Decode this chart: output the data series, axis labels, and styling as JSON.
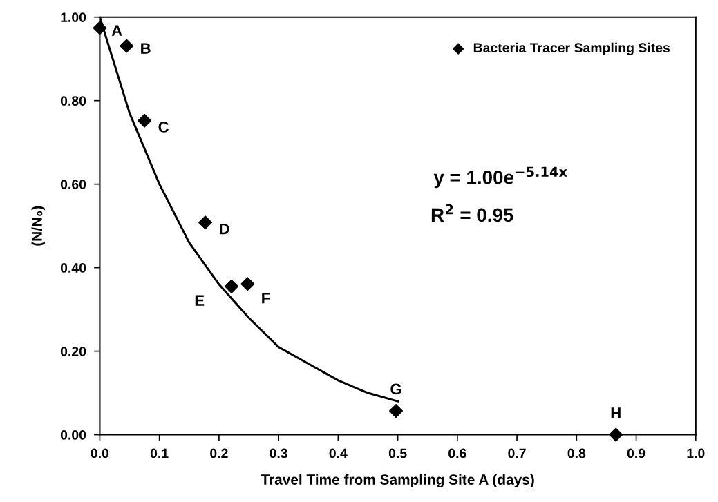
{
  "chart_data": {
    "type": "scatter",
    "xlabel": "Travel Time from Sampling Site A (days)",
    "ylabel": "(N/N₀)",
    "series": [
      {
        "name": "Bacteria Tracer Sampling Sites",
        "color": "#000000",
        "marker": "diamond",
        "x": [
          0.0,
          0.045,
          0.075,
          0.177,
          0.221,
          0.248,
          0.497,
          0.866
        ],
        "values": [
          0.974,
          0.931,
          0.752,
          0.508,
          0.355,
          0.361,
          0.057,
          0.0
        ]
      },
      {
        "type": "line",
        "color": "#000000",
        "marker": "none",
        "line_style": "solid",
        "x": [
          0.0,
          0.05,
          0.1,
          0.15,
          0.2,
          0.25,
          0.3,
          0.35,
          0.4,
          0.45,
          0.5
        ],
        "values": [
          1.0,
          0.77,
          0.6,
          0.46,
          0.36,
          0.28,
          0.21,
          0.17,
          0.13,
          0.1,
          0.08
        ]
      }
    ],
    "annotations": [
      {
        "text": "A",
        "x": 0.0,
        "y": 0.974
      },
      {
        "text": "B",
        "x": 0.045,
        "y": 0.931
      },
      {
        "text": "C",
        "x": 0.075,
        "y": 0.752
      },
      {
        "text": "D",
        "x": 0.177,
        "y": 0.508
      },
      {
        "text": "E",
        "x": 0.221,
        "y": 0.355
      },
      {
        "text": "F",
        "x": 0.248,
        "y": 0.361
      },
      {
        "text": "G",
        "x": 0.497,
        "y": 0.057
      },
      {
        "text": "H",
        "x": 0.866,
        "y": 0.0
      },
      "y = 1.00e$^{−5.14x}$",
      "R$^{2}$ = 0.95"
    ],
    "xlim": [
      0.0,
      1.0
    ],
    "ylim": [
      0.0,
      1.0
    ],
    "xticks": [
      {
        "value": 0.0,
        "label": "0.0"
      },
      0.1,
      0.2,
      0.3,
      0.4,
      0.5,
      0.6,
      0.7,
      0.8,
      0.9,
      {
        "value": 1.0,
        "label": "1.0"
      }
    ],
    "yticks": [
      {
        "value": 0.0,
        "label": "0.00"
      },
      {
        "value": 0.2,
        "label": "0.20"
      },
      {
        "value": 0.4,
        "label": "0.40"
      },
      {
        "value": 0.6,
        "label": "0.60"
      },
      {
        "value": 0.8,
        "label": "0.80"
      },
      {
        "value": 1.0,
        "label": "1.00"
      }
    ],
    "grid": false,
    "legend": "top right"
  }
}
